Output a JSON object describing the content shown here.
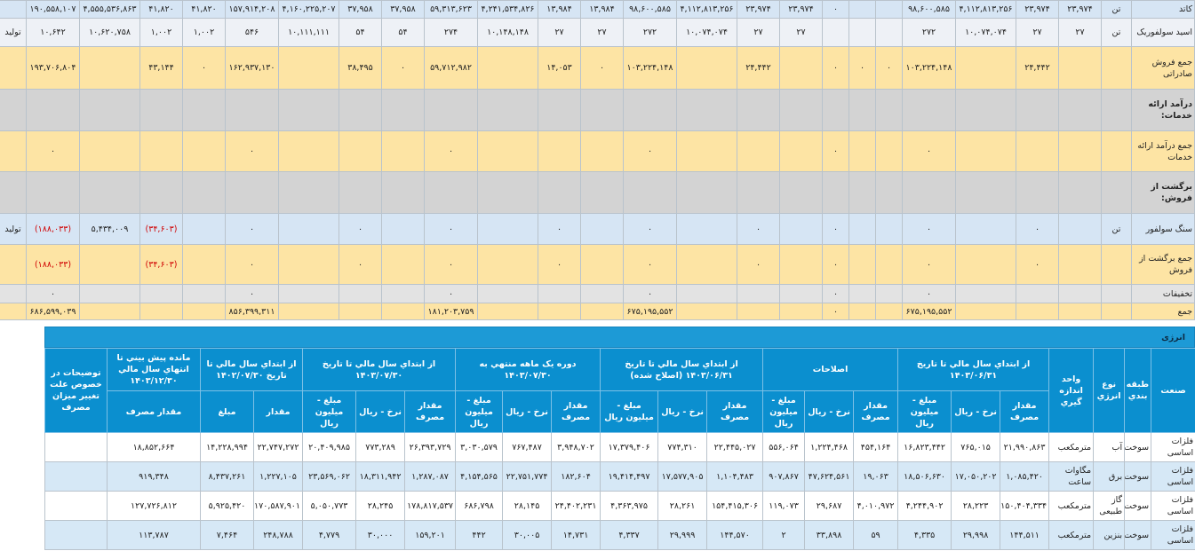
{
  "top_table": {
    "rows": [
      [
        "کاتد",
        "تن",
        "۲۳,۹۷۴",
        "۲۳,۹۷۴",
        "۴,۱۱۲,۸۱۳,۲۵۶",
        "۹۸,۶۰۰,۵۸۵",
        null,
        null,
        "۰",
        "۲۳,۹۷۴",
        "۲۳,۹۷۴",
        "۴,۱۱۲,۸۱۳,۲۵۶",
        "۹۸,۶۰۰,۵۸۵",
        "۱۳,۹۸۴",
        "۱۳,۹۸۴",
        "۴,۲۴۱,۵۳۴,۸۲۶",
        "۵۹,۳۱۳,۶۲۳",
        "۳۷,۹۵۸",
        "۳۷,۹۵۸",
        "۴,۱۶۰,۲۲۵,۲۰۷",
        "۱۵۷,۹۱۴,۲۰۸",
        "۴۱,۸۲۰",
        "۴۱,۸۲۰",
        "۴,۵۵۵,۵۳۶,۸۶۳",
        "۱۹۰,۵۵۸,۱۰۷",
        null
      ],
      [
        "اسید سولفوریک",
        "تن",
        "۲۷",
        "۲۷",
        "۱۰,۰۷۴,۰۷۴",
        "۲۷۲",
        null,
        null,
        null,
        "۲۷",
        "۲۷",
        "۱۰,۰۷۴,۰۷۴",
        "۲۷۲",
        "۲۷",
        "۲۷",
        "۱۰,۱۴۸,۱۴۸",
        "۲۷۴",
        "۵۴",
        "۵۴",
        "۱۰,۱۱۱,۱۱۱",
        "۵۴۶",
        "۱,۰۰۲",
        "۱,۰۰۲",
        "۱۰,۶۲۰,۷۵۸",
        "۱۰,۶۴۲",
        "تولید"
      ],
      [
        "جمع فروش صادراتی",
        null,
        null,
        "۲۴,۴۴۲",
        null,
        "۱۰۳,۲۲۴,۱۴۸",
        "۰",
        "۰",
        "۰",
        null,
        "۲۴,۴۴۲",
        null,
        "۱۰۳,۲۲۴,۱۴۸",
        "۰",
        "۱۴,۰۵۳",
        null,
        "۵۹,۷۱۲,۹۸۲",
        "۰",
        "۳۸,۴۹۵",
        null,
        "۱۶۲,۹۳۷,۱۳۰",
        "۰",
        "۴۳,۱۴۴",
        null,
        "۱۹۳,۷۰۶,۸۰۴",
        null
      ],
      [
        "درآمد ارائه خدمات:"
      ],
      [
        "جمع درآمد ارائه خدمات",
        null,
        null,
        null,
        null,
        "۰",
        null,
        null,
        "۰",
        null,
        null,
        null,
        "۰",
        null,
        null,
        null,
        "۰",
        null,
        null,
        null,
        "۰",
        null,
        null,
        null,
        "۰",
        null
      ],
      [
        "برگشت از فروش:"
      ],
      [
        "سنگ سولفور",
        "تن",
        null,
        "۰",
        null,
        "۰",
        null,
        null,
        "۰",
        null,
        "۰",
        null,
        "۰",
        null,
        "۰",
        null,
        "۰",
        null,
        "۰",
        null,
        "۰",
        null,
        "(۳۴,۶۰۳)",
        "۵,۴۳۴,۰۰۹",
        "(۱۸۸,۰۳۳)",
        "تولید"
      ],
      [
        "جمع برگشت از فروش",
        null,
        null,
        "۰",
        null,
        "۰",
        null,
        null,
        "۰",
        null,
        "۰",
        null,
        "۰",
        null,
        "۰",
        null,
        "۰",
        null,
        "۰",
        null,
        "۰",
        null,
        "(۳۴,۶۰۳)",
        null,
        "(۱۸۸,۰۳۳)",
        null
      ],
      [
        "تخفیفات",
        null,
        null,
        null,
        null,
        "۰",
        null,
        null,
        "۰",
        null,
        null,
        null,
        "۰",
        null,
        null,
        null,
        "۰",
        null,
        null,
        null,
        "۰",
        null,
        null,
        null,
        "۰",
        null
      ],
      [
        "جمع",
        null,
        null,
        null,
        null,
        "۶۷۵,۱۹۵,۵۵۲",
        null,
        null,
        "۰",
        null,
        null,
        null,
        "۶۷۵,۱۹۵,۵۵۲",
        null,
        null,
        null,
        "۱۸۱,۲۰۳,۷۵۹",
        null,
        null,
        null,
        "۸۵۶,۳۹۹,۳۱۱",
        null,
        null,
        null,
        "۶۸۶,۵۹۹,۰۳۹",
        null
      ]
    ]
  },
  "energy": {
    "title": "انرژی",
    "fixed_columns": [
      "صنعت",
      "طبقه بندي",
      "نوع انرژي",
      "واحد اندازه گيري"
    ],
    "groups": [
      {
        "title": "از ابتداي سال مالي تا تاريخ ۱۴۰۳/۰۶/۳۱",
        "columns": [
          "مقدار مصرف",
          "نرخ - ريال",
          "مبلغ - ميليون ريال"
        ]
      },
      {
        "title": "اصلاحات",
        "columns": [
          "مقدار مصرف",
          "نرخ - ريال",
          "مبلغ - ميليون ريال"
        ]
      },
      {
        "title": "از ابتداي سال مالي تا تاريخ ۱۴۰۳/۰۶/۳۱ (اصلاح شده)",
        "columns": [
          "مقدار مصرف",
          "نرخ - ريال",
          "مبلغ - ميليون ريال"
        ]
      },
      {
        "title": "دوره يک ماهه منتهي به ۱۴۰۳/۰۷/۳۰",
        "columns": [
          "مقدار مصرف",
          "نرخ - ريال",
          "مبلغ - ميليون ريال"
        ]
      },
      {
        "title": "از ابتداي سال مالي تا تاريخ ۱۴۰۳/۰۷/۳۰",
        "columns": [
          "مقدار مصرف",
          "نرخ - ريال",
          "مبلغ - ميليون ريال"
        ]
      },
      {
        "title": "از ابتداي سال مالي تا تاريخ ۱۴۰۲/۰۷/۳۰",
        "columns": [
          "مقدار",
          "مبلغ"
        ]
      },
      {
        "title": "مانده پيش بيني تا انتهاي سال مالي ۱۴۰۳/۱۲/۳۰",
        "columns": [
          "مقدار مصرف"
        ]
      }
    ],
    "notes_column": "توضيحات در خصوص علت تغيير ميزان مصرف",
    "rows": [
      [
        "فلزات اساسی",
        "سوخت",
        "آب",
        "مترمکعب",
        "۲۱,۹۹۰,۸۶۳",
        "۷۶۵,۰۱۵",
        "۱۶,۸۲۳,۴۴۲",
        "۴۵۴,۱۶۴",
        "۱,۲۲۴,۴۶۸",
        "۵۵۶,۰۶۴",
        "۲۲,۴۴۵,۰۲۷",
        "۷۷۴,۳۱۰",
        "۱۷,۳۷۹,۴۰۶",
        "۳,۹۴۸,۷۰۲",
        "۷۶۷,۴۸۷",
        "۳,۰۳۰,۵۷۹",
        "۲۶,۳۹۳,۷۲۹",
        "۷۷۳,۲۸۹",
        "۲۰,۴۰۹,۹۸۵",
        "۲۲,۷۴۷,۲۷۲",
        "۱۴,۲۲۸,۹۹۴",
        "۱۸,۸۵۲,۶۶۴",
        null
      ],
      [
        "فلزات اساسی",
        "سوخت",
        "برق",
        "مگاوات ساعت",
        "۱,۰۸۵,۴۲۰",
        "۱۷,۰۵۰,۲۰۲",
        "۱۸,۵۰۶,۶۳۰",
        "۱۹,۰۶۳",
        "۴۷,۶۲۴,۵۶۱",
        "۹۰۷,۸۶۷",
        "۱,۱۰۴,۴۸۳",
        "۱۷,۵۷۷,۹۰۵",
        "۱۹,۴۱۴,۴۹۷",
        "۱۸۲,۶۰۴",
        "۲۲,۷۵۱,۷۷۴",
        "۴,۱۵۴,۵۶۵",
        "۱,۲۸۷,۰۸۷",
        "۱۸,۳۱۱,۹۴۲",
        "۲۳,۵۶۹,۰۶۲",
        "۱,۲۲۷,۱۰۵",
        "۸,۴۳۷,۲۶۱",
        "۹۱۹,۳۴۸",
        null
      ],
      [
        "فلزات اساسی",
        "سوخت",
        "گاز طبیعی",
        "مترمکعب",
        "۱۵۰,۴۰۴,۳۳۴",
        "۲۸,۲۲۳",
        "۴,۲۴۴,۹۰۲",
        "۴,۰۱۰,۹۷۲",
        "۲۹,۶۸۷",
        "۱۱۹,۰۷۳",
        "۱۵۴,۴۱۵,۳۰۶",
        "۲۸,۲۶۱",
        "۴,۳۶۳,۹۷۵",
        "۲۴,۴۰۲,۲۳۱",
        "۲۸,۱۴۵",
        "۶۸۶,۷۹۸",
        "۱۷۸,۸۱۷,۵۳۷",
        "۲۸,۲۴۵",
        "۵,۰۵۰,۷۷۳",
        "۱۷۰,۵۸۷,۹۰۱",
        "۵,۹۲۵,۴۲۰",
        "۱۲۷,۷۲۶,۸۱۲",
        null
      ],
      [
        "فلزات اساسی",
        "سوخت",
        "بنزین",
        "مترمکعب",
        "۱۴۴,۵۱۱",
        "۲۹,۹۹۸",
        "۴,۳۳۵",
        "۵۹",
        "۳۳,۸۹۸",
        "۲",
        "۱۴۴,۵۷۰",
        "۲۹,۹۹۹",
        "۴,۳۳۷",
        "۱۴,۷۳۱",
        "۳۰,۰۰۵",
        "۴۴۲",
        "۱۵۹,۲۰۱",
        "۳۰,۰۰۰",
        "۴,۷۷۹",
        "۲۴۸,۷۸۸",
        "۷,۴۶۴",
        "۱۱۳,۷۸۷",
        null
      ]
    ]
  }
}
